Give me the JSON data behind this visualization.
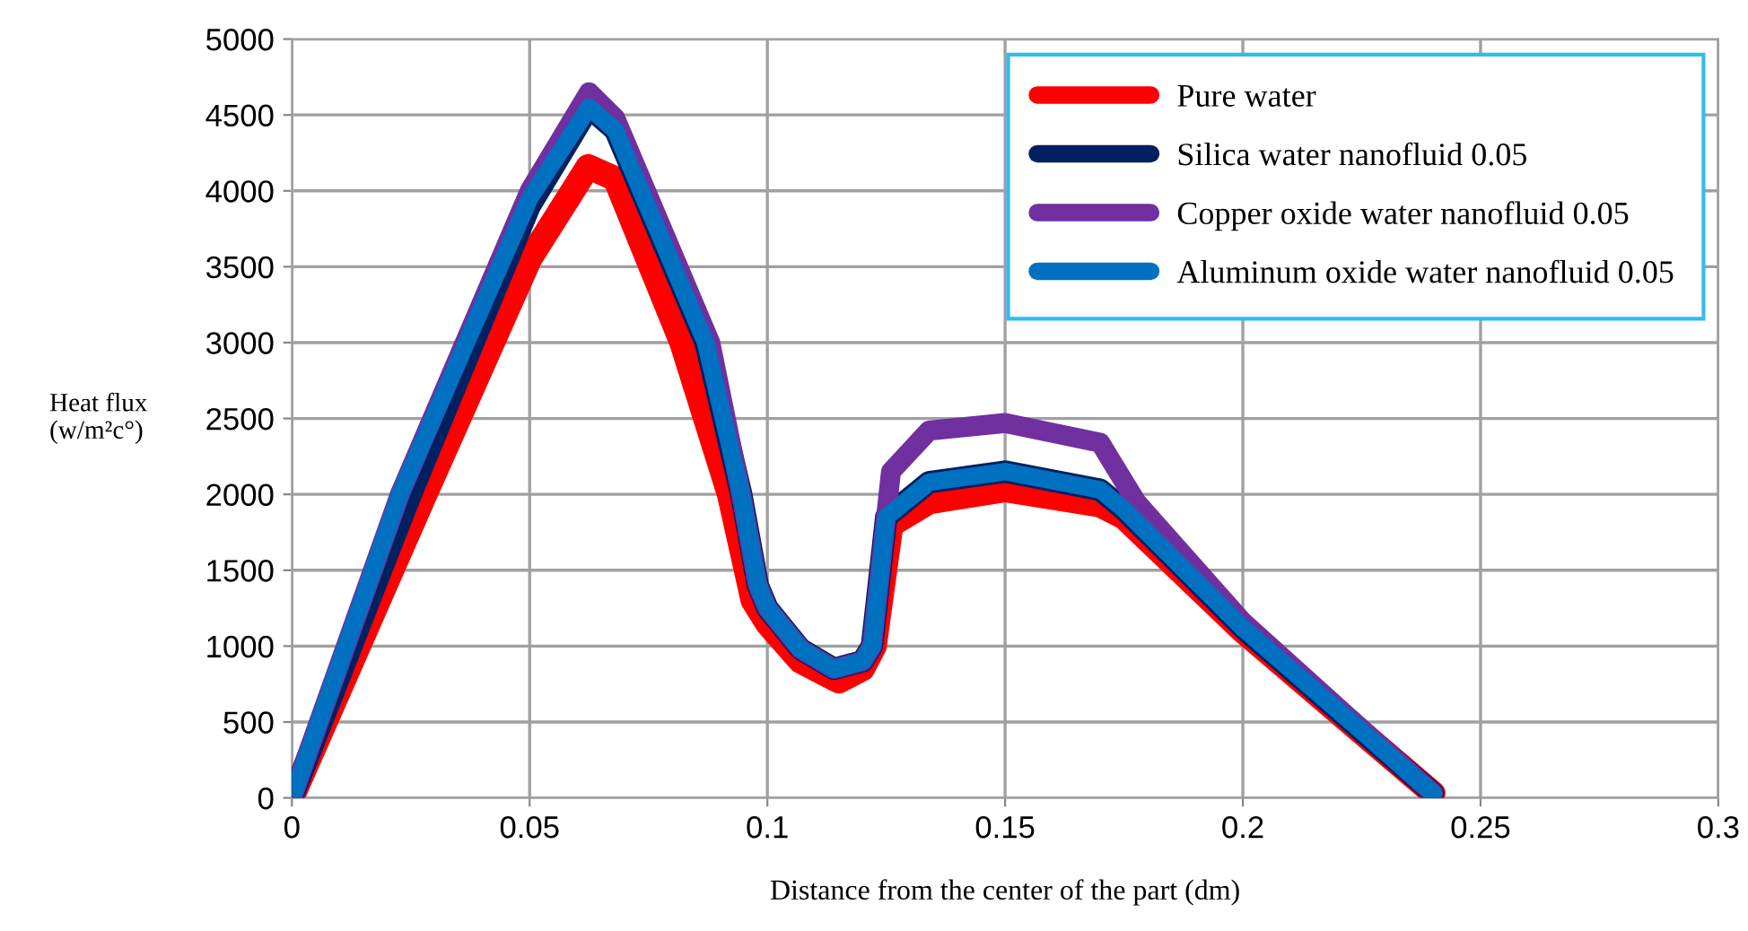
{
  "chart_data": {
    "type": "line",
    "xlabel": "Distance from the center of the part (dm)",
    "ylabel": "Heat flux\n(w/m²c°)",
    "xlim": [
      0,
      0.3
    ],
    "xticks": [
      0,
      0.05,
      0.1,
      0.15,
      0.2,
      0.25,
      0.3
    ],
    "ylim": [
      0,
      5000
    ],
    "yticks": [
      0,
      500,
      1000,
      1500,
      2000,
      2500,
      3000,
      3500,
      4000,
      4500,
      5000
    ],
    "grid": true,
    "legend": "top right",
    "marker": "none",
    "line_style": "solid",
    "series": [
      {
        "name": "Pure water",
        "color": "#ff0000",
        "x": [
          0,
          0.028,
          0.05,
          0.0623,
          0.068,
          0.082,
          0.092,
          0.097,
          0.1,
          0.107,
          0.115,
          0.12,
          0.1225,
          0.126,
          0.134,
          0.15,
          0.17,
          0.175,
          0.2,
          0.24
        ],
        "values": [
          0,
          2000,
          3550,
          4160,
          4080,
          3000,
          2000,
          1300,
          1150,
          900,
          770,
          850,
          1000,
          1800,
          1950,
          2030,
          1930,
          1850,
          1100,
          30
        ]
      },
      {
        "name": "Silica water nanofluid 0.05",
        "color": "#002060",
        "x": [
          0,
          0.025,
          0.05,
          0.0625,
          0.068,
          0.087,
          0.0945,
          0.098,
          0.1,
          0.107,
          0.114,
          0.12,
          0.122,
          0.125,
          0.134,
          0.15,
          0.17,
          0.175,
          0.2,
          0.24
        ],
        "values": [
          0,
          2000,
          3900,
          4550,
          4400,
          3000,
          2000,
          1400,
          1250,
          980,
          850,
          900,
          1000,
          1850,
          2080,
          2150,
          2030,
          1900,
          1120,
          30
        ]
      },
      {
        "name": "Copper oxide water nanofluid 0.05",
        "color": "#7030a0",
        "x": [
          0,
          0.0227,
          0.05,
          0.0625,
          0.068,
          0.088,
          0.0945,
          0.098,
          0.1,
          0.107,
          0.114,
          0.12,
          0.122,
          0.126,
          0.134,
          0.15,
          0.17,
          0.1776,
          0.2,
          0.24
        ],
        "values": [
          0,
          2000,
          4000,
          4650,
          4480,
          3000,
          2000,
          1400,
          1250,
          980,
          850,
          900,
          1000,
          2150,
          2420,
          2470,
          2340,
          1950,
          1160,
          30
        ]
      },
      {
        "name": "Aluminum oxide water nanofluid 0.05",
        "color": "#0070c0",
        "x": [
          0,
          0.0227,
          0.05,
          0.0625,
          0.068,
          0.087,
          0.0945,
          0.098,
          0.1,
          0.107,
          0.114,
          0.12,
          0.122,
          0.125,
          0.134,
          0.15,
          0.17,
          0.175,
          0.2,
          0.24
        ],
        "values": [
          0,
          2000,
          3950,
          4550,
          4400,
          3000,
          2000,
          1400,
          1250,
          980,
          850,
          900,
          1000,
          1850,
          2080,
          2150,
          2030,
          1900,
          1120,
          30
        ]
      }
    ]
  }
}
